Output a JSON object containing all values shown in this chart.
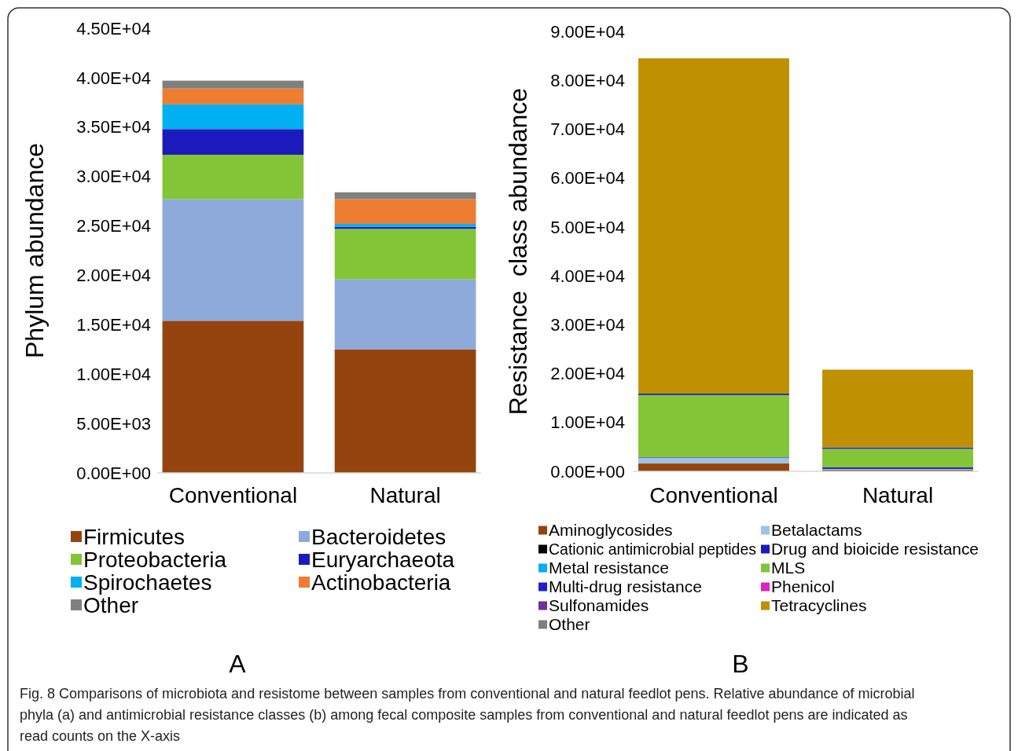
{
  "chart_data": [
    {
      "type": "bar",
      "title": "A",
      "ylabel": "Phylum abundance",
      "categories": [
        "Conventional",
        "Natural"
      ],
      "stacked": true,
      "ylim": [
        0,
        45000
      ],
      "yticks": [
        {
          "value": 0,
          "label": "0.00E+00"
        },
        {
          "value": 5000,
          "label": "5.00E+03"
        },
        {
          "value": 10000,
          "label": "1.00E+04"
        },
        {
          "value": 15000,
          "label": "1.50E+04"
        },
        {
          "value": 20000,
          "label": "2.00E+04"
        },
        {
          "value": 25000,
          "label": "2.50E+04"
        },
        {
          "value": 30000,
          "label": "3.00E+04"
        },
        {
          "value": 35000,
          "label": "3.50E+04"
        },
        {
          "value": 40000,
          "label": "4.00E+04"
        },
        {
          "value": 45000,
          "label": "4.50E+04"
        }
      ],
      "grid": false,
      "legend": "bottom",
      "series": [
        {
          "name": "Firmicutes",
          "color": "#96440f",
          "values": [
            15400,
            12500
          ]
        },
        {
          "name": "Bacteroidetes",
          "color": "#8eaadb",
          "values": [
            12300,
            7100
          ]
        },
        {
          "name": "Proteobacteria",
          "color": "#83c537",
          "values": [
            4500,
            5100
          ]
        },
        {
          "name": "Euryarchaeota",
          "color": "#1b1bbd",
          "values": [
            2600,
            200
          ]
        },
        {
          "name": "Spirochaetes",
          "color": "#00b0f0",
          "values": [
            2500,
            300
          ]
        },
        {
          "name": "Actinobacteria",
          "color": "#ed7d31",
          "values": [
            1600,
            2500
          ]
        },
        {
          "name": "Other",
          "color": "#7f7f7f",
          "values": [
            800,
            700
          ]
        }
      ]
    },
    {
      "type": "bar",
      "title": "B",
      "ylabel": "Resistance  class abundance",
      "categories": [
        "Conventional",
        "Natural"
      ],
      "stacked": true,
      "ylim": [
        0,
        90000
      ],
      "yticks": [
        {
          "value": 0,
          "label": "0.00E+00"
        },
        {
          "value": 10000,
          "label": "1.00E+04"
        },
        {
          "value": 20000,
          "label": "2.00E+04"
        },
        {
          "value": 30000,
          "label": "3.00E+04"
        },
        {
          "value": 40000,
          "label": "4.00E+04"
        },
        {
          "value": 50000,
          "label": "5.00E+04"
        },
        {
          "value": 60000,
          "label": "6.00E+04"
        },
        {
          "value": 70000,
          "label": "7.00E+04"
        },
        {
          "value": 80000,
          "label": "8.00E+04"
        },
        {
          "value": 90000,
          "label": "9.00E+04"
        }
      ],
      "grid": false,
      "legend": "bottom",
      "series": [
        {
          "name": "Aminoglycosides",
          "color": "#96440f",
          "values": [
            1600,
            300
          ]
        },
        {
          "name": "Betalactams",
          "color": "#9dc3e6",
          "values": [
            1200,
            200
          ]
        },
        {
          "name": "Cationic antimicrobial peptides",
          "color": "#000000",
          "values": [
            0,
            0
          ]
        },
        {
          "name": "Drug and bioicide resistance",
          "color": "#1b1bbd",
          "values": [
            100,
            300
          ]
        },
        {
          "name": "Metal resistance",
          "color": "#00b0f0",
          "values": [
            0,
            0
          ]
        },
        {
          "name": "MLS",
          "color": "#83c537",
          "values": [
            12700,
            3800
          ]
        },
        {
          "name": "Multi-drug resistance",
          "color": "#2020c8",
          "values": [
            300,
            300
          ]
        },
        {
          "name": "Phenicol",
          "color": "#e020c0",
          "values": [
            0,
            0
          ]
        },
        {
          "name": "Sulfonamides",
          "color": "#7030a0",
          "values": [
            0,
            0
          ]
        },
        {
          "name": "Tetracyclines",
          "color": "#bf9000",
          "values": [
            68600,
            15900
          ]
        },
        {
          "name": "Other",
          "color": "#7f7f7f",
          "values": [
            0,
            0
          ]
        }
      ],
      "annotations": [
        "Fig. 8 Comparisons of microbiota and resistome between samples from conventional and natural feedlot pens. Relative abundance of microbial phyla (a) and antimicrobial resistance classes (b) among fecal composite samples from conventional and natural feedlot pens are indicated as read counts on the X-axis"
      ]
    }
  ]
}
